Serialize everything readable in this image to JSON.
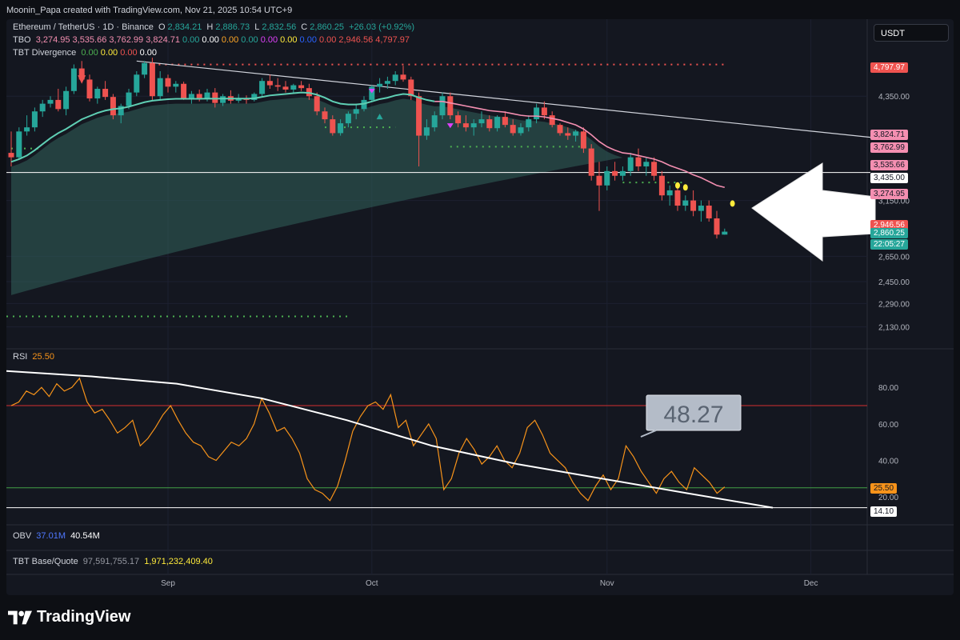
{
  "header": {
    "attribution": "Moonin_Papa created with TradingView.com, Nov 21, 2025 10:54 UTC+9"
  },
  "currency_chip": "USDT",
  "footer": {
    "brand": "TradingView"
  },
  "colors": {
    "up": "#26a69a",
    "down": "#ef5350",
    "rsi": "#f7931a",
    "ema": "#5fcfb4",
    "ema_down": "#f48fb1",
    "signal_dot_red": "#ef5350",
    "signal_dot_green": "#4caf50"
  },
  "legend": {
    "symbol": "Ethereum / TetherUS · 1D · Binance",
    "o_label": "O",
    "o": "2,834.21",
    "h_label": "H",
    "h": "2,886.73",
    "l_label": "L",
    "l": "2,832.56",
    "c_label": "C",
    "c": "2,860.25",
    "change": "+26.03 (+0.92%)",
    "tbo_label": "TBO",
    "tbo_values": [
      "3,274.95",
      "3,535.66",
      "3,762.99",
      "3,824.71",
      "0.00",
      "0.00",
      "0.00",
      "0.00",
      "0.00",
      "0.00",
      "0.00",
      "0.00",
      "2,946.56",
      "4,797.97"
    ],
    "tbo_colors": [
      "#f48fb1",
      "#f48fb1",
      "#f48fb1",
      "#f48fb1",
      "#26a69a",
      "#ffffff",
      "#ffa726",
      "#26a69a",
      "#e040fb",
      "#ffeb3b",
      "#2962ff",
      "#ef5350",
      "#ef5350",
      "#ef5350"
    ],
    "tbt_label": "TBT Divergence",
    "tbt_values": [
      "0.00",
      "0.00",
      "0.00",
      "0.00"
    ],
    "tbt_colors": [
      "#4caf50",
      "#ffeb3b",
      "#ef5350",
      "#ffffff"
    ],
    "rsi_label": "RSI",
    "rsi_value": "25.50",
    "obv_label": "OBV",
    "obv_values": [
      "37.01M",
      "40.54M"
    ],
    "tbt_bq_label": "TBT Base/Quote",
    "tbt_bq_values": [
      "97,591,755.17",
      "1,971,232,409.40"
    ]
  },
  "price_axis_ticks": [
    "4,350.00",
    "3,150.00",
    "2,650.00",
    "2,450.00",
    "2,290.00",
    "2,130.00"
  ],
  "rsi_axis_ticks": [
    "80.00",
    "60.00",
    "40.00",
    "20.00"
  ],
  "price_tags": [
    {
      "text": "4,797.97",
      "bg": "#ef5350",
      "fg": "#ffffff"
    },
    {
      "text": "3,824.71",
      "bg": "#f48fb1",
      "fg": "#131722"
    },
    {
      "text": "3,762.99",
      "bg": "#f48fb1",
      "fg": "#131722"
    },
    {
      "text": "3,535.66",
      "bg": "#f48fb1",
      "fg": "#131722"
    },
    {
      "text": "3,435.00",
      "bg": "#ffffff",
      "fg": "#131722"
    },
    {
      "text": "3,274.95",
      "bg": "#f48fb1",
      "fg": "#131722"
    },
    {
      "text": "2,946.56",
      "bg": "#ef5350",
      "fg": "#ffffff"
    },
    {
      "text": "2,860.25",
      "bg": "#26a69a",
      "fg": "#ffffff"
    },
    {
      "text": "22:05:27",
      "bg": "#26a69a",
      "fg": "#ffffff"
    }
  ],
  "rsi_tags": [
    {
      "text": "25.50",
      "bg": "#f7931a",
      "fg": "#131722"
    },
    {
      "text": "14.10",
      "bg": "#ffffff",
      "fg": "#131722"
    }
  ],
  "annotation": {
    "text": "48.27"
  },
  "x_axis_labels": [
    "Sep",
    "Oct",
    "Nov",
    "Dec"
  ],
  "chart_data": [
    {
      "type": "candlestick",
      "title": "Ethereum / TetherUS · 1D · Binance",
      "ylim": [
        2000,
        5000
      ],
      "log_scale": true,
      "grid": true,
      "horizontal_line": 3435,
      "trendline_from_to": [
        [
          4850,
          3830
        ]
      ],
      "candles": [
        [
          3650,
          3900,
          3500,
          3600
        ],
        [
          3600,
          3950,
          3580,
          3900
        ],
        [
          3900,
          4100,
          3850,
          3950
        ],
        [
          3950,
          4200,
          3900,
          4150
        ],
        [
          4150,
          4300,
          4080,
          4250
        ],
        [
          4250,
          4350,
          4200,
          4300
        ],
        [
          4300,
          4450,
          4150,
          4180
        ],
        [
          4180,
          4480,
          4100,
          4420
        ],
        [
          4420,
          4800,
          4380,
          4740
        ],
        [
          4740,
          4850,
          4550,
          4580
        ],
        [
          4580,
          4650,
          4280,
          4320
        ],
        [
          4320,
          4480,
          4250,
          4450
        ],
        [
          4450,
          4560,
          4300,
          4340
        ],
        [
          4340,
          4380,
          4050,
          4100
        ],
        [
          4100,
          4250,
          4000,
          4220
        ],
        [
          4220,
          4450,
          4180,
          4400
        ],
        [
          4400,
          4700,
          4350,
          4650
        ],
        [
          4650,
          4850,
          4600,
          4820
        ],
        [
          4820,
          4900,
          4300,
          4350
        ],
        [
          4350,
          4700,
          4300,
          4600
        ],
        [
          4600,
          4650,
          4400,
          4480
        ],
        [
          4480,
          4560,
          4400,
          4520
        ],
        [
          4520,
          4550,
          4300,
          4320
        ],
        [
          4320,
          4420,
          4250,
          4380
        ],
        [
          4380,
          4440,
          4280,
          4320
        ],
        [
          4320,
          4450,
          4280,
          4400
        ],
        [
          4400,
          4460,
          4200,
          4260
        ],
        [
          4260,
          4380,
          4220,
          4350
        ],
        [
          4350,
          4430,
          4250,
          4290
        ],
        [
          4290,
          4380,
          4260,
          4320
        ],
        [
          4320,
          4360,
          4250,
          4300
        ],
        [
          4300,
          4400,
          4280,
          4380
        ],
        [
          4380,
          4600,
          4350,
          4560
        ],
        [
          4560,
          4650,
          4450,
          4500
        ],
        [
          4500,
          4600,
          4420,
          4480
        ],
        [
          4480,
          4560,
          4400,
          4440
        ],
        [
          4440,
          4520,
          4380,
          4500
        ],
        [
          4500,
          4560,
          4420,
          4460
        ],
        [
          4460,
          4520,
          4300,
          4350
        ],
        [
          4350,
          4400,
          4100,
          4150
        ],
        [
          4150,
          4200,
          4000,
          4050
        ],
        [
          4050,
          4100,
          3850,
          3880
        ],
        [
          3880,
          4050,
          3850,
          4000
        ],
        [
          4000,
          4150,
          3950,
          4120
        ],
        [
          4120,
          4250,
          4050,
          4180
        ],
        [
          4180,
          4350,
          4150,
          4300
        ],
        [
          4300,
          4500,
          4280,
          4480
        ],
        [
          4480,
          4600,
          4400,
          4520
        ],
        [
          4520,
          4620,
          4450,
          4560
        ],
        [
          4560,
          4700,
          4500,
          4650
        ],
        [
          4650,
          4780,
          4550,
          4580
        ],
        [
          4580,
          4620,
          4300,
          4350
        ],
        [
          4350,
          4400,
          3500,
          3850
        ],
        [
          3850,
          4050,
          3800,
          3950
        ],
        [
          3950,
          4150,
          3900,
          4100
        ],
        [
          4100,
          4400,
          4050,
          4350
        ],
        [
          4350,
          4400,
          4050,
          4100
        ],
        [
          4100,
          4150,
          3950,
          4000
        ],
        [
          4000,
          4100,
          3900,
          3950
        ],
        [
          3950,
          4050,
          3850,
          4000
        ],
        [
          4000,
          4150,
          3950,
          4050
        ],
        [
          4050,
          4100,
          3900,
          3940
        ],
        [
          3940,
          4100,
          3900,
          4080
        ],
        [
          4080,
          4150,
          3950,
          3980
        ],
        [
          3980,
          4050,
          3850,
          3880
        ],
        [
          3880,
          4000,
          3850,
          3950
        ],
        [
          3950,
          4100,
          3900,
          4050
        ],
        [
          4050,
          4250,
          4000,
          4200
        ],
        [
          4200,
          4280,
          4050,
          4100
        ],
        [
          4100,
          4150,
          3950,
          3980
        ],
        [
          3980,
          4000,
          3850,
          3880
        ],
        [
          3880,
          3950,
          3800,
          3850
        ],
        [
          3850,
          3920,
          3780,
          3900
        ],
        [
          3900,
          3950,
          3650,
          3700
        ],
        [
          3700,
          3750,
          3350,
          3400
        ],
        [
          3400,
          3550,
          3050,
          3300
        ],
        [
          3300,
          3500,
          3250,
          3450
        ],
        [
          3450,
          3550,
          3350,
          3400
        ],
        [
          3400,
          3500,
          3350,
          3450
        ],
        [
          3450,
          3650,
          3400,
          3600
        ],
        [
          3600,
          3700,
          3450,
          3500
        ],
        [
          3500,
          3600,
          3400,
          3550
        ],
        [
          3550,
          3600,
          3350,
          3400
        ],
        [
          3400,
          3450,
          3150,
          3200
        ],
        [
          3200,
          3300,
          3100,
          3250
        ],
        [
          3250,
          3300,
          3050,
          3100
        ],
        [
          3100,
          3200,
          3050,
          3150
        ],
        [
          3150,
          3250,
          3000,
          3050
        ],
        [
          3050,
          3150,
          2950,
          3100
        ],
        [
          3100,
          3150,
          2950,
          2980
        ],
        [
          2980,
          3050,
          2800,
          2834
        ],
        [
          2834,
          2887,
          2833,
          2860
        ]
      ],
      "ema_values": [
        3550,
        3580,
        3620,
        3680,
        3750,
        3820,
        3880,
        3930,
        3990,
        4050,
        4090,
        4130,
        4160,
        4180,
        4190,
        4210,
        4240,
        4270,
        4290,
        4300,
        4310,
        4315,
        4315,
        4315,
        4315,
        4318,
        4316,
        4318,
        4318,
        4318,
        4318,
        4320,
        4340,
        4360,
        4370,
        4380,
        4390,
        4400,
        4395,
        4370,
        4330,
        4280,
        4250,
        4240,
        4240,
        4250,
        4280,
        4310,
        4330,
        4360,
        4380,
        4370,
        4330,
        4300,
        4280,
        4280,
        4260,
        4240,
        4220,
        4200,
        4180,
        4160,
        4150,
        4140,
        4120,
        4100,
        4090,
        4090,
        4080,
        4060,
        4040,
        4010,
        3980,
        3930,
        3860,
        3780,
        3720,
        3680,
        3650,
        3640,
        3620,
        3600,
        3580,
        3550,
        3510,
        3480,
        3450,
        3410,
        3380,
        3340,
        3300,
        3280
      ],
      "x_axis_labels": [
        "Sep",
        "Oct",
        "Nov",
        "Dec"
      ],
      "support_levels": [
        3435,
        3274.95,
        2946.56
      ],
      "last_price": 2860.25,
      "countdown": "22:05:27"
    },
    {
      "type": "line",
      "title": "RSI",
      "series": [
        {
          "name": "RSI",
          "values": [
            70,
            72,
            78,
            76,
            80,
            75,
            82,
            78,
            80,
            85,
            72,
            66,
            68,
            62,
            55,
            58,
            62,
            48,
            52,
            58,
            65,
            70,
            62,
            55,
            50,
            48,
            42,
            40,
            45,
            50,
            48,
            52,
            60,
            74,
            66,
            56,
            58,
            52,
            44,
            30,
            24,
            22,
            18,
            26,
            40,
            56,
            64,
            70,
            72,
            68,
            76,
            58,
            62,
            48,
            54,
            60,
            52,
            24,
            30,
            44,
            52,
            46,
            38,
            42,
            48,
            40,
            36,
            44,
            58,
            62,
            54,
            44,
            40,
            36,
            28,
            22,
            18,
            26,
            32,
            24,
            30,
            48,
            42,
            34,
            28,
            22,
            30,
            34,
            28,
            24,
            36,
            32,
            28,
            22,
            25.5
          ]
        }
      ],
      "ylim": [
        10,
        95
      ],
      "overbought": 70,
      "oversold": 25,
      "current": 25.5,
      "lower_line": 14.1,
      "annotation_value": 48.27,
      "trendline_ys": [
        89,
        86,
        82,
        74,
        62,
        48,
        38,
        30,
        22,
        14.1
      ]
    }
  ]
}
